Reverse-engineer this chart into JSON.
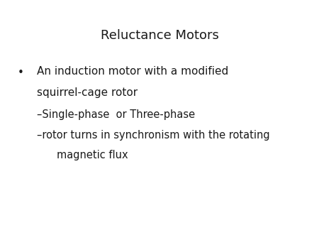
{
  "title": "Reluctance Motors",
  "title_fontsize": 13,
  "title_color": "#1a1a1a",
  "background_color": "#ffffff",
  "bullet_char": "•",
  "bullet_text_line1": "An induction motor with a modified",
  "bullet_text_line2": "squirrel-cage rotor",
  "sub1_text": "–Single-phase  or Three-phase",
  "sub2_text_line1": "–rotor turns in synchronism with the rotating",
  "sub2_text_line2": "   magnetic flux",
  "text_color": "#1a1a1a",
  "bullet_fontsize": 11,
  "sub_fontsize": 10.5,
  "font_family": "DejaVu Sans"
}
